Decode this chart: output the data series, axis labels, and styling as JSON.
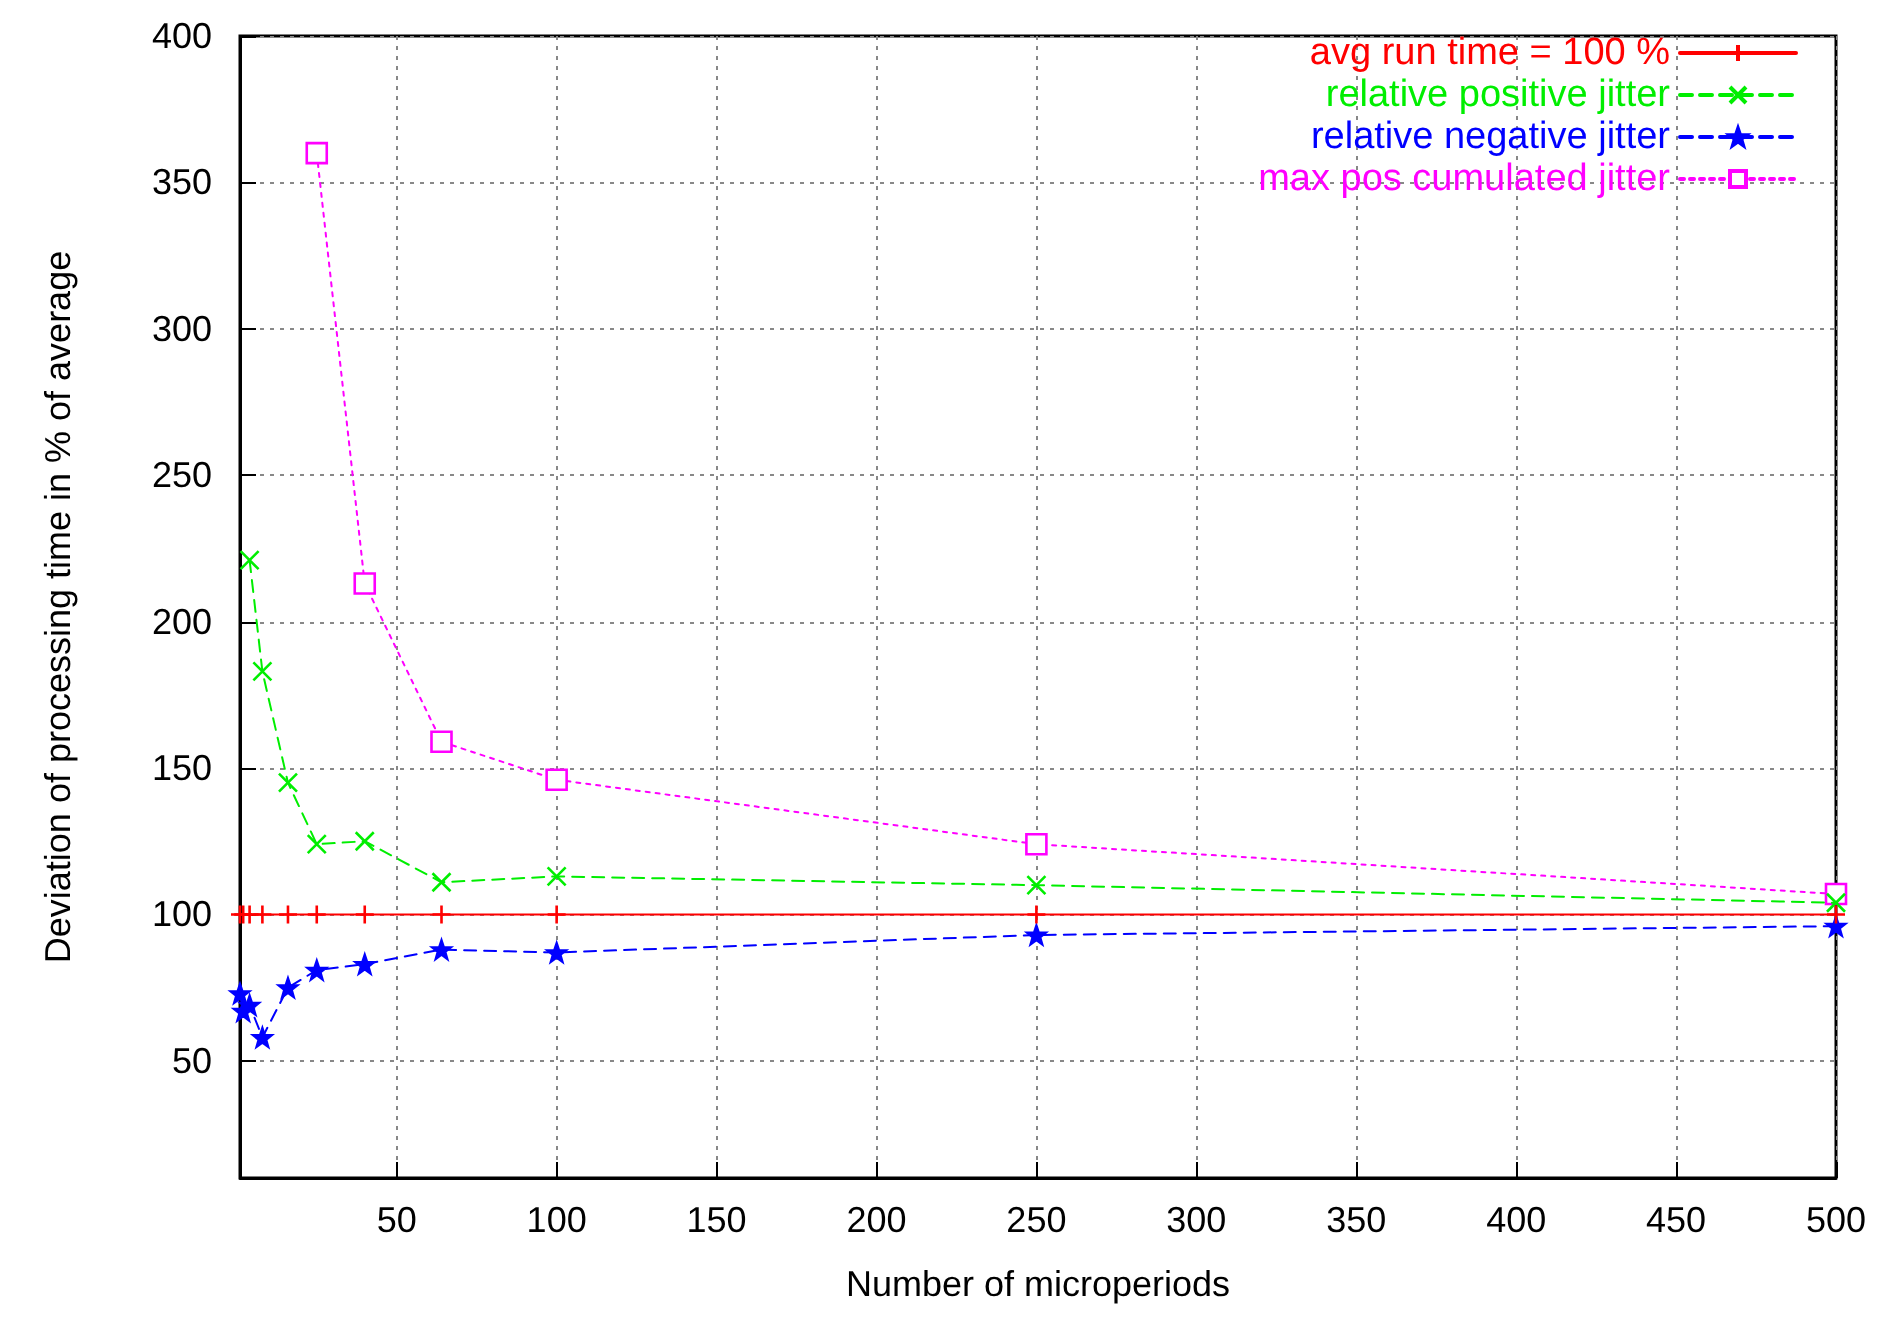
{
  "chart_data": {
    "type": "line",
    "xlabel": "Number of microperiods",
    "ylabel": "Deviation of processing time in % of average",
    "xlim": [
      1,
      500
    ],
    "xticks": [
      50,
      100,
      150,
      200,
      250,
      300,
      350,
      400,
      450,
      500
    ],
    "ylim": [
      10,
      400
    ],
    "yticks": [
      50,
      100,
      150,
      200,
      250,
      300,
      350,
      400
    ],
    "grid": true,
    "legend": "top right",
    "series": [
      {
        "name": "avg run time = 100 %",
        "color": "#ff0000",
        "marker": "plus",
        "line_style": "solid",
        "x": [
          1,
          2,
          4,
          8,
          16,
          25,
          40,
          64,
          100,
          250,
          500
        ],
        "values": [
          100,
          100,
          100,
          100,
          100,
          100,
          100,
          100,
          100,
          100,
          100
        ]
      },
      {
        "name": "relative positive jitter",
        "color": "#00ee00",
        "marker": "x",
        "line_style": "dashed",
        "x": [
          4,
          8,
          16,
          25,
          40,
          64,
          100,
          250,
          500
        ],
        "values": [
          221,
          183,
          145,
          124,
          125,
          111,
          113,
          110,
          104
        ]
      },
      {
        "name": "relative negative jitter",
        "color": "#0000ff",
        "marker": "star",
        "line_style": "dashed",
        "x": [
          1,
          2,
          4,
          8,
          16,
          25,
          40,
          64,
          100,
          250,
          500
        ],
        "values": [
          73,
          67,
          69,
          58,
          75,
          81,
          83,
          88,
          87,
          93,
          96
        ]
      },
      {
        "name": "max pos cumulated jitter",
        "color": "#ff00ff",
        "marker": "square",
        "line_style": "dotted",
        "x": [
          25,
          40,
          64,
          100,
          250,
          500
        ],
        "values": [
          360,
          213,
          159,
          146,
          124,
          107
        ]
      }
    ]
  }
}
